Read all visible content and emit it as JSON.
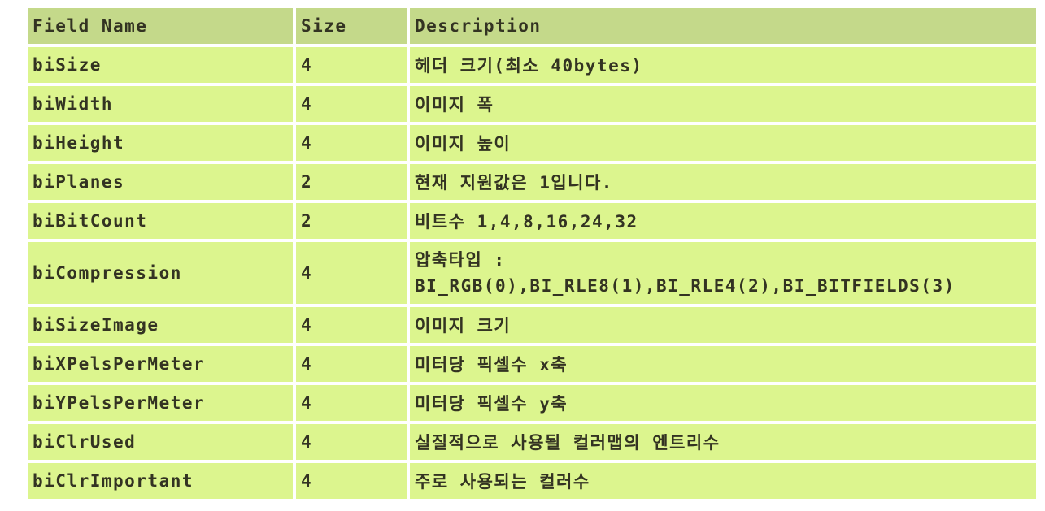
{
  "table": {
    "headers": [
      "Field Name",
      "Size",
      "Description"
    ],
    "rows": [
      {
        "field": "biSize",
        "size": "4",
        "description": "헤더 크기(최소 40bytes)"
      },
      {
        "field": "biWidth",
        "size": "4",
        "description": "이미지 폭"
      },
      {
        "field": "biHeight",
        "size": "4",
        "description": "이미지 높이"
      },
      {
        "field": "biPlanes",
        "size": "2",
        "description": "현재 지원값은 1입니다."
      },
      {
        "field": "biBitCount",
        "size": "2",
        "description": "비트수 1,4,8,16,24,32"
      },
      {
        "field": "biCompression",
        "size": "4",
        "description": "압축타입 :",
        "description2": "BI_RGB(0),BI_RLE8(1),BI_RLE4(2),BI_BITFIELDS(3)"
      },
      {
        "field": "biSizeImage",
        "size": "4",
        "description": "이미지 크기"
      },
      {
        "field": "biXPelsPerMeter",
        "size": "4",
        "description": "미터당 픽셀수 x축"
      },
      {
        "field": "biYPelsPerMeter",
        "size": "4",
        "description": "미터당 픽셀수 y축"
      },
      {
        "field": "biClrUsed",
        "size": "4",
        "description": "실질적으로 사용될 컬러맵의 엔트리수"
      },
      {
        "field": "biClrImportant",
        "size": "4",
        "description": "주로 사용되는 컬러수"
      }
    ]
  },
  "colors": {
    "header_bg": "#c4d98a",
    "cell_bg": "#dcf58e",
    "text": "#333322"
  }
}
